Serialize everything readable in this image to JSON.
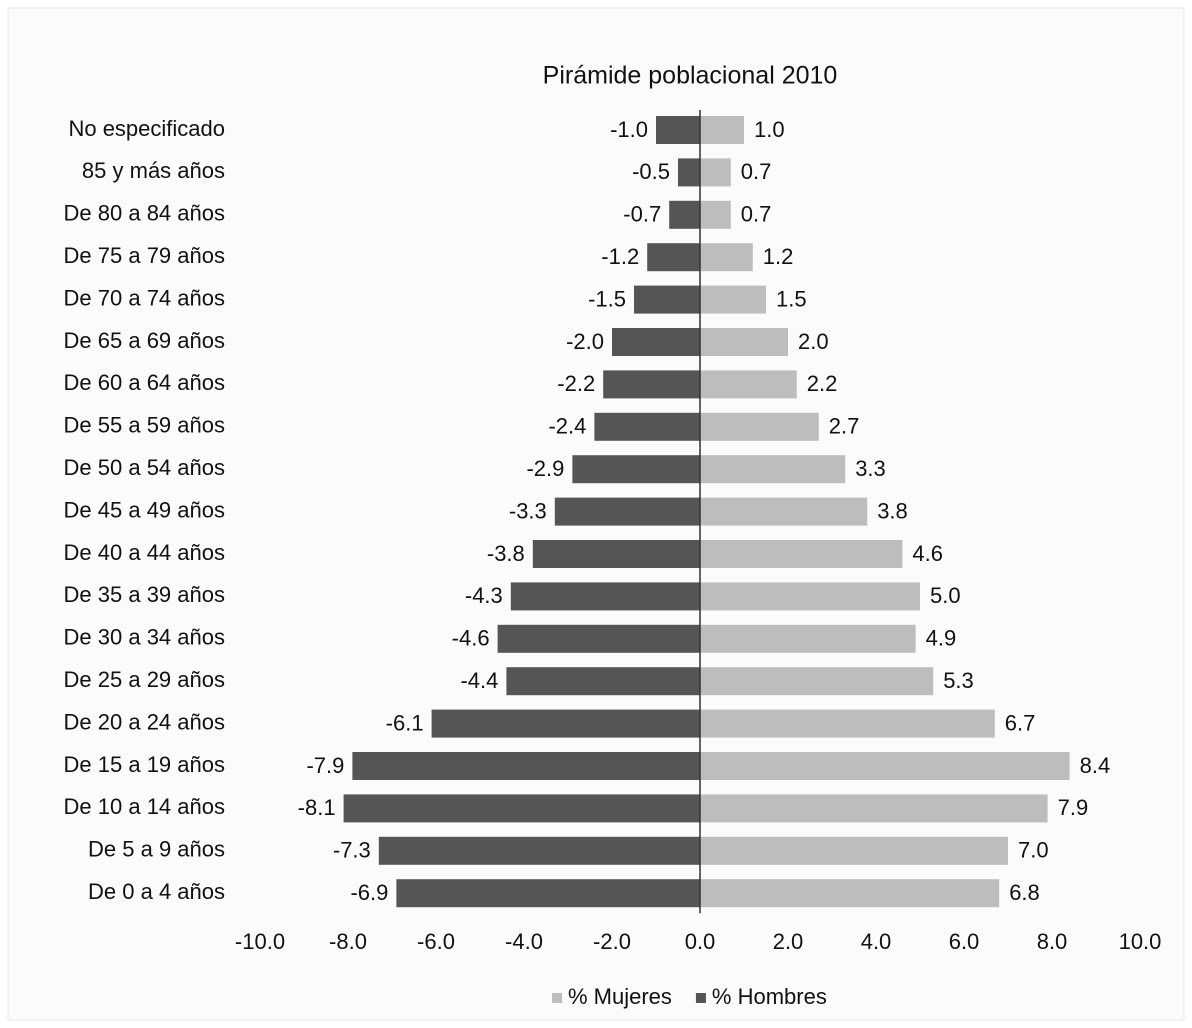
{
  "chart_data": {
    "type": "bar",
    "orientation": "horizontal",
    "title": "Pirámide poblacional 2010",
    "categories": [
      "No especificado",
      "85 y más años",
      "De 80 a 84 años",
      "De 75 a 79 años",
      "De 70 a 74 años",
      "De 65 a 69 años",
      "De 60 a 64 años",
      "De 55 a 59 años",
      "De 50 a 54 años",
      "De 45 a 49 años",
      "De 40 a 44 años",
      "De 35 a 39 años",
      "De 30 a 34 años",
      "De 25 a 29 años",
      "De 20 a 24 años",
      "De 15 a 19 años",
      "De 10 a 14 años",
      "De 5 a 9 años",
      "De 0 a 4 años"
    ],
    "series": [
      {
        "name": "% Mujeres",
        "color": "#bdbdbd",
        "values": [
          1.0,
          0.7,
          0.7,
          1.2,
          1.5,
          2.0,
          2.2,
          2.7,
          3.3,
          3.8,
          4.6,
          5.0,
          4.9,
          5.3,
          6.7,
          8.4,
          7.9,
          7.0,
          6.8
        ],
        "value_labels": [
          "1.0",
          "0.7",
          "0.7",
          "1.2",
          "1.5",
          "2.0",
          "2.2",
          "2.7",
          "3.3",
          "3.8",
          "4.6",
          "5.0",
          "4.9",
          "5.3",
          "6.7",
          "8.4",
          "7.9",
          "7.0",
          "6.8"
        ]
      },
      {
        "name": "% Hombres",
        "color": "#555555",
        "values": [
          -1.0,
          -0.5,
          -0.7,
          -1.2,
          -1.5,
          -2.0,
          -2.2,
          -2.4,
          -2.9,
          -3.3,
          -3.8,
          -4.3,
          -4.6,
          -4.4,
          -6.1,
          -7.9,
          -8.1,
          -7.3,
          -6.9
        ],
        "value_labels": [
          "-1.0",
          "-0.5",
          "-0.7",
          "-1.2",
          "-1.5",
          "-2.0",
          "-2.2",
          "-2.4",
          "-2.9",
          "-3.3",
          "-3.8",
          "-4.3",
          "-4.6",
          "-4.4",
          "-6.1",
          "-7.9",
          "-8.1",
          "-7.3",
          "-6.9"
        ]
      }
    ],
    "xlim": [
      -10,
      10
    ],
    "xticks": [
      {
        "value": -10,
        "label": "-10.0"
      },
      {
        "value": -8,
        "label": "-8.0"
      },
      {
        "value": -6,
        "label": "-6.0"
      },
      {
        "value": -4,
        "label": "-4.0"
      },
      {
        "value": -2,
        "label": "-2.0"
      },
      {
        "value": 0,
        "label": "0.0"
      },
      {
        "value": 2,
        "label": "2.0"
      },
      {
        "value": 4,
        "label": "4.0"
      },
      {
        "value": 6,
        "label": "6.0"
      },
      {
        "value": 8,
        "label": "8.0"
      },
      {
        "value": 10,
        "label": "10.0"
      }
    ],
    "grid": false,
    "legend": "bottom"
  }
}
